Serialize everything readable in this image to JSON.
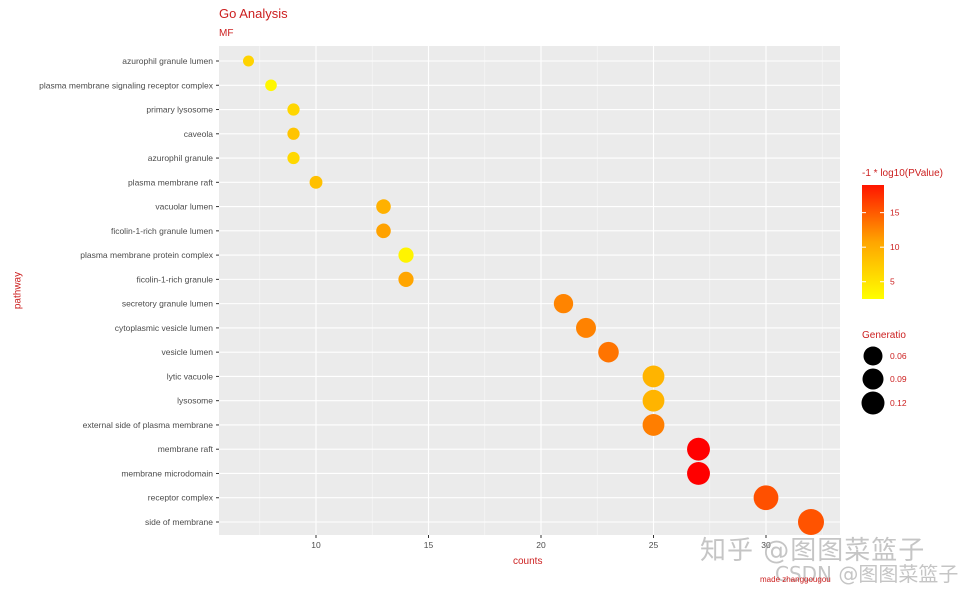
{
  "chart_data": {
    "type": "scatter",
    "title": "Go Analysis",
    "subtitle": "MF",
    "xlabel": "counts",
    "ylabel": "pathway",
    "caption": "made zhanggougou",
    "xlim": [
      5.7,
      33.2
    ],
    "xticks": [
      10,
      15,
      20,
      25,
      30
    ],
    "grid": true,
    "categories": [
      "azurophil granule lumen",
      "plasma membrane signaling receptor complex",
      "primary lysosome",
      "caveola",
      "azurophil granule",
      "plasma membrane raft",
      "vacuolar lumen",
      "ficolin-1-rich granule lumen",
      "plasma membrane protein complex",
      "ficolin-1-rich granule",
      "secretory granule lumen",
      "cytoplasmic vesicle lumen",
      "vesicle lumen",
      "lytic vacuole",
      "lysosome",
      "external side of plasma membrane",
      "membrane raft",
      "membrane microdomain",
      "receptor complex",
      "side of membrane"
    ],
    "points": [
      {
        "pathway": "azurophil granule lumen",
        "counts": 7,
        "neg_log10_pvalue": 6,
        "generatio": 0.027,
        "color": "#FFD300"
      },
      {
        "pathway": "plasma membrane signaling receptor complex",
        "counts": 8,
        "neg_log10_pvalue": 2.5,
        "generatio": 0.031,
        "color": "#FFF700"
      },
      {
        "pathway": "primary lysosome",
        "counts": 9,
        "neg_log10_pvalue": 5.5,
        "generatio": 0.035,
        "color": "#FFD600"
      },
      {
        "pathway": "caveola",
        "counts": 9,
        "neg_log10_pvalue": 7.5,
        "generatio": 0.035,
        "color": "#FFC400"
      },
      {
        "pathway": "azurophil granule",
        "counts": 9,
        "neg_log10_pvalue": 5.2,
        "generatio": 0.035,
        "color": "#FFD800"
      },
      {
        "pathway": "plasma membrane raft",
        "counts": 10,
        "neg_log10_pvalue": 8,
        "generatio": 0.039,
        "color": "#FFC000"
      },
      {
        "pathway": "vacuolar lumen",
        "counts": 13,
        "neg_log10_pvalue": 9,
        "generatio": 0.05,
        "color": "#FFB100"
      },
      {
        "pathway": "ficolin-1-rich granule lumen",
        "counts": 13,
        "neg_log10_pvalue": 10.5,
        "generatio": 0.05,
        "color": "#FFA200"
      },
      {
        "pathway": "plasma membrane protein complex",
        "counts": 14,
        "neg_log10_pvalue": 3,
        "generatio": 0.054,
        "color": "#FFF400"
      },
      {
        "pathway": "ficolin-1-rich granule",
        "counts": 14,
        "neg_log10_pvalue": 10,
        "generatio": 0.054,
        "color": "#FFA500"
      },
      {
        "pathway": "secretory granule lumen",
        "counts": 21,
        "neg_log10_pvalue": 12.5,
        "generatio": 0.081,
        "color": "#FF8400"
      },
      {
        "pathway": "cytoplasmic vesicle lumen",
        "counts": 22,
        "neg_log10_pvalue": 12.7,
        "generatio": 0.085,
        "color": "#FF8200"
      },
      {
        "pathway": "vesicle lumen",
        "counts": 23,
        "neg_log10_pvalue": 13.5,
        "generatio": 0.089,
        "color": "#FF7400"
      },
      {
        "pathway": "lytic vacuole",
        "counts": 25,
        "neg_log10_pvalue": 9,
        "generatio": 0.097,
        "color": "#FFB400"
      },
      {
        "pathway": "lysosome",
        "counts": 25,
        "neg_log10_pvalue": 9,
        "generatio": 0.097,
        "color": "#FFB400"
      },
      {
        "pathway": "external side of plasma membrane",
        "counts": 25,
        "neg_log10_pvalue": 13,
        "generatio": 0.097,
        "color": "#FF7E00"
      },
      {
        "pathway": "membrane raft",
        "counts": 27,
        "neg_log10_pvalue": 19,
        "generatio": 0.104,
        "color": "#FF0000"
      },
      {
        "pathway": "membrane microdomain",
        "counts": 27,
        "neg_log10_pvalue": 19,
        "generatio": 0.104,
        "color": "#FF0000"
      },
      {
        "pathway": "receptor complex",
        "counts": 30,
        "neg_log10_pvalue": 16,
        "generatio": 0.116,
        "color": "#FF5000"
      },
      {
        "pathway": "side of membrane",
        "counts": 32,
        "neg_log10_pvalue": 15.8,
        "generatio": 0.124,
        "color": "#FF5300"
      }
    ],
    "legends": {
      "color": {
        "title": "-1 * log10(PValue)",
        "ticks": [
          5,
          10,
          15
        ],
        "range": [
          2.5,
          19
        ],
        "low_color": "#FFFF00",
        "high_color": "#FF0000"
      },
      "size": {
        "title": "Generatio",
        "labels": [
          "0.06",
          "0.09",
          "0.12"
        ]
      },
      "position": "right"
    }
  },
  "watermark": {
    "line1": "知乎 @图图菜篮子",
    "line2": "CSDN @图图菜篮子"
  },
  "colors": {
    "panel_bg": "#EBEBEB",
    "grid": "#FFFFFF",
    "text_red": "#CC1F1F",
    "axis_text": "#4D4D4D"
  }
}
